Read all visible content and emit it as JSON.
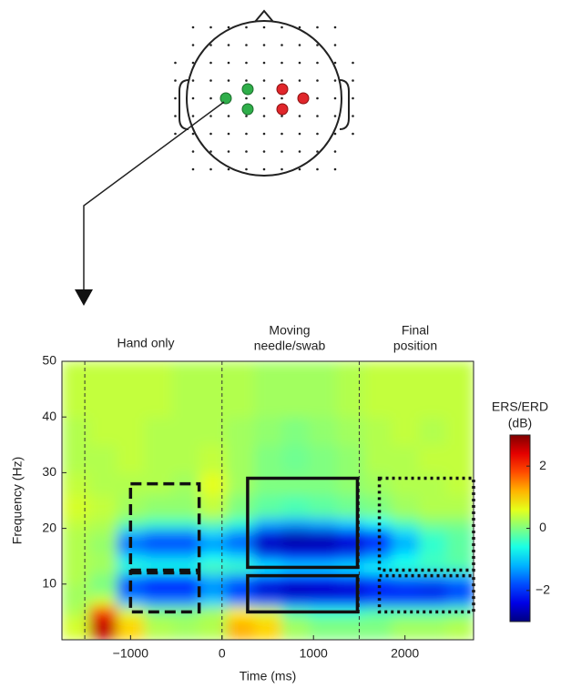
{
  "chart_data": {
    "type": "heatmap",
    "period_labels": [
      [
        "Hand only"
      ],
      [
        "Moving",
        "needle/swab"
      ],
      [
        "Final",
        "position"
      ]
    ],
    "xlabel": "Time (ms)",
    "ylabel": "Frequency (Hz)",
    "xlim": [
      -1750,
      2750
    ],
    "ylim": [
      0,
      50
    ],
    "xticks": [
      {
        "value": -1000,
        "label": "−1000"
      },
      0,
      1000,
      2000
    ],
    "yticks": [
      10,
      20,
      30,
      40,
      50
    ],
    "x_edges": [
      -1750,
      -1450,
      -1150,
      -850,
      -550,
      -250,
      50,
      350,
      650,
      950,
      1250,
      1550,
      1850,
      2150,
      2450,
      2750
    ],
    "y_edges": [
      0,
      4,
      6,
      8,
      10,
      12,
      14,
      16,
      18,
      20,
      22,
      26,
      30,
      35,
      40,
      50
    ],
    "z": [
      [
        0.5,
        2.6,
        1.0,
        0.3,
        0.2,
        0.3,
        1.2,
        1.0,
        0.2,
        0,
        0,
        0,
        0.2,
        0.2,
        0.3
      ],
      [
        0.3,
        2.0,
        0.5,
        0,
        0,
        0.2,
        0.8,
        0.5,
        -0.3,
        -0.5,
        -0.5,
        -0.3,
        -0.3,
        -0.3,
        -0.2
      ],
      [
        0.2,
        0.5,
        -1.2,
        -1.5,
        -1.5,
        -1,
        -1.5,
        -1.8,
        -2,
        -2,
        -2,
        -1.8,
        -1.8,
        -1.8,
        -1.5
      ],
      [
        0.2,
        0,
        -2,
        -2.2,
        -2.2,
        -1.5,
        -2.2,
        -2.6,
        -2.8,
        -2.7,
        -2.6,
        -2.3,
        -2.3,
        -2.4,
        -2.2
      ],
      [
        0.3,
        0,
        -1.5,
        -1.8,
        -1.8,
        -1.2,
        -1.5,
        -2,
        -2.2,
        -2.2,
        -2,
        -1.8,
        -1.6,
        -1.6,
        -1.4
      ],
      [
        0.3,
        0.2,
        -0.5,
        -0.6,
        -0.6,
        -0.3,
        -0.4,
        -0.8,
        -1,
        -1,
        -0.9,
        -0.7,
        -0.5,
        -0.4,
        -0.3
      ],
      [
        0.3,
        0.2,
        -1,
        -1.2,
        -1.2,
        -0.8,
        -1,
        -1.8,
        -2,
        -2,
        -1.8,
        -1.4,
        -0.8,
        -0.4,
        -0.2
      ],
      [
        0.3,
        0.1,
        -1.8,
        -2,
        -2,
        -1.5,
        -1.8,
        -2.7,
        -2.8,
        -2.8,
        -2.6,
        -2.2,
        -1.3,
        -0.5,
        -0.2
      ],
      [
        0.3,
        0.2,
        -1.2,
        -1.5,
        -1.5,
        -1,
        -1.4,
        -2.4,
        -2.6,
        -2.5,
        -2.3,
        -1.8,
        -1,
        -0.4,
        -0.2
      ],
      [
        0.4,
        0.3,
        -0.2,
        -0.4,
        -0.4,
        -0.2,
        -0.5,
        -1.2,
        -1.3,
        -1.2,
        -1,
        -0.7,
        -0.3,
        0,
        0
      ],
      [
        0.5,
        0.4,
        0.2,
        0.1,
        0.1,
        0.4,
        0,
        -0.2,
        -0.3,
        -0.2,
        -0.1,
        0,
        0.2,
        0.3,
        0.3
      ],
      [
        0.4,
        0.3,
        0.3,
        0.3,
        0.2,
        0.6,
        0.2,
        0,
        0,
        0,
        0.1,
        0.2,
        0.3,
        0.3,
        0.4
      ],
      [
        0.3,
        0.3,
        0.4,
        0.3,
        0.3,
        0.4,
        0.2,
        0,
        -0.1,
        0,
        0.1,
        0.3,
        0.3,
        0.4,
        0.4
      ],
      [
        0.3,
        0.4,
        0.4,
        0.3,
        0.3,
        0.3,
        0.2,
        0.1,
        0,
        0.1,
        0.2,
        0.3,
        0.4,
        0.3,
        0.4
      ],
      [
        0.4,
        0.4,
        0.4,
        0.4,
        0.3,
        0.3,
        0.3,
        0.2,
        0.2,
        0.2,
        0.3,
        0.4,
        0.4,
        0.4,
        0.4
      ]
    ],
    "colormap": "jet",
    "clim": [
      -3,
      3
    ],
    "colorbar_label": [
      "ERS/ERD",
      "(dB)"
    ],
    "colorbar_ticks": [
      2,
      0,
      {
        "value": -2,
        "label": "−2"
      }
    ],
    "vlines": [
      -1500,
      0,
      1500
    ],
    "boxes": [
      {
        "x": [
          -1000,
          -250
        ],
        "y": [
          12.5,
          28
        ],
        "style": "dashed"
      },
      {
        "x": [
          -1000,
          -250
        ],
        "y": [
          5,
          12
        ],
        "style": "dashed"
      },
      {
        "x": [
          280,
          1480
        ],
        "y": [
          13,
          29
        ],
        "style": "solid"
      },
      {
        "x": [
          280,
          1480
        ],
        "y": [
          5,
          11.5
        ],
        "style": "solid"
      },
      {
        "x": [
          1720,
          2750
        ],
        "y": [
          12.5,
          29
        ],
        "style": "dotted"
      },
      {
        "x": [
          1720,
          2750
        ],
        "y": [
          5,
          11.5
        ],
        "style": "dotted"
      }
    ]
  }
}
